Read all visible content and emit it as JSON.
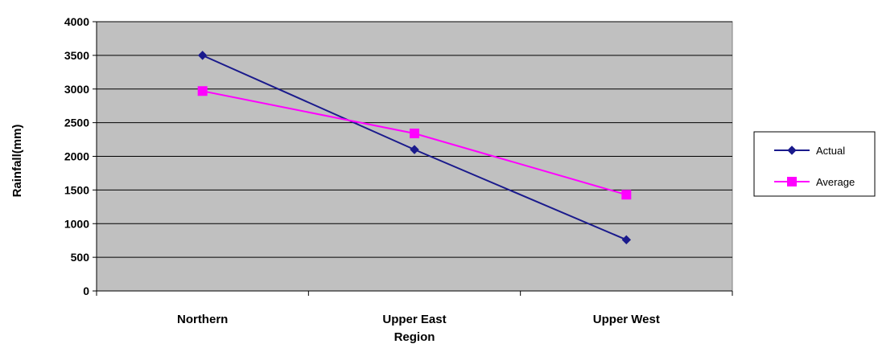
{
  "chart_data": {
    "type": "line",
    "categories": [
      "Northern",
      "Upper East",
      "Upper West"
    ],
    "series": [
      {
        "name": "Actual",
        "values": [
          3500,
          2100,
          760
        ],
        "color": "#1a1a8c",
        "marker": "diamond"
      },
      {
        "name": "Average",
        "values": [
          2970,
          2340,
          1430
        ],
        "color": "#ff00ff",
        "marker": "square"
      }
    ],
    "title": "",
    "xlabel": "Region",
    "ylabel": "Rainfall(mm)",
    "ylim": [
      0,
      4000
    ],
    "yticks": [
      0,
      500,
      1000,
      1500,
      2000,
      2500,
      3000,
      3500,
      4000
    ],
    "grid": true,
    "plot_background": "#c0c0c0",
    "legend_position": "right"
  }
}
